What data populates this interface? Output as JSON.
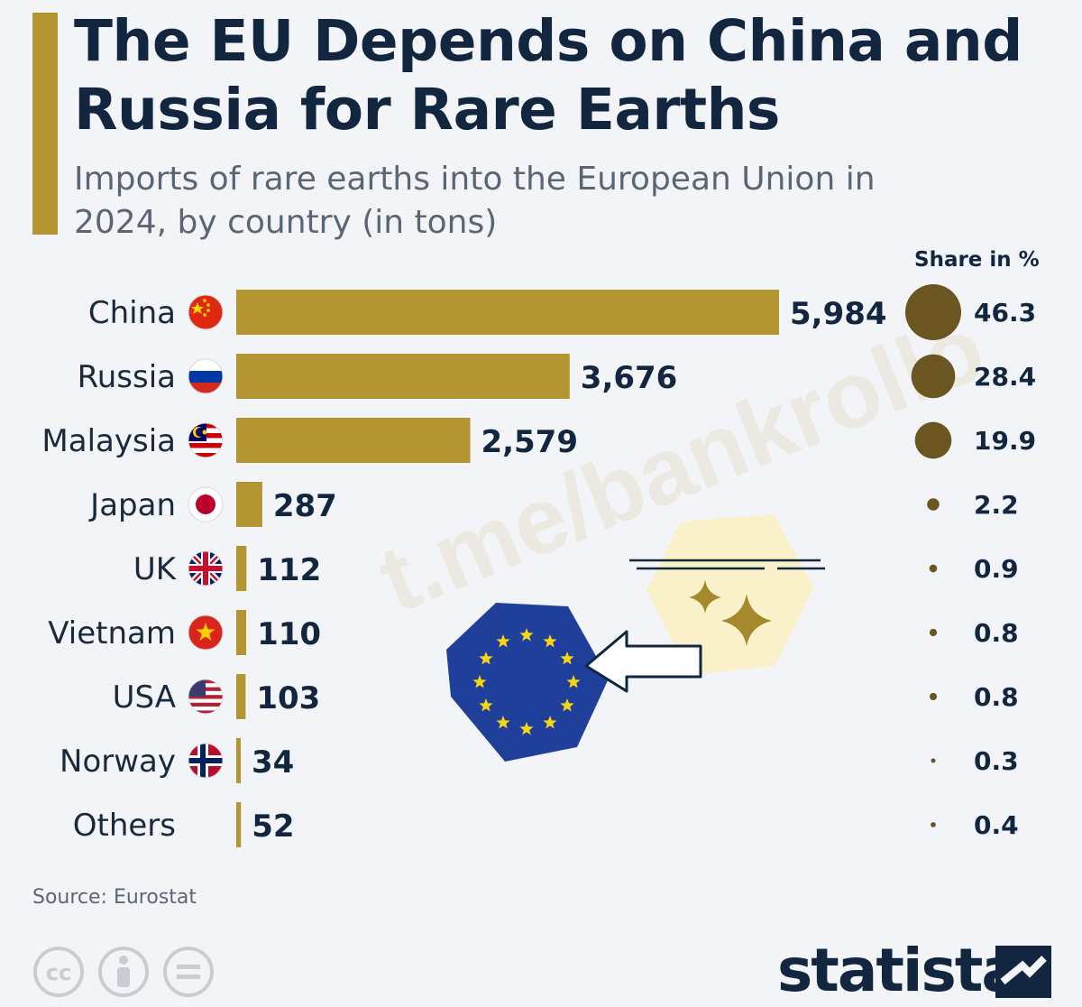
{
  "header": {
    "title": "The EU Depends on China and Russia for Rare Earths",
    "subtitle": "Imports of rare earths into the European Union in 2024, by country (in tons)"
  },
  "share_header": "Share in %",
  "footer": {
    "source": "Source: Eurostat",
    "brand": "statista",
    "watermark": "t.me/bankrollo"
  },
  "colors": {
    "bar": "#b39632",
    "bubble": "#6b5520",
    "text_dark": "#13263f",
    "eu_blue": "#1f3f9a",
    "eu_star": "#f6d516"
  },
  "icons": [
    "flag-china-icon",
    "flag-russia-icon",
    "flag-malaysia-icon",
    "flag-japan-icon",
    "flag-uk-icon",
    "flag-vietnam-icon",
    "flag-usa-icon",
    "flag-norway-icon",
    "eu-flag-icon",
    "cc-license-icon",
    "attribution-icon",
    "no-derivatives-icon",
    "statista-logo-icon"
  ],
  "chart_data": {
    "type": "bar",
    "orientation": "horizontal",
    "title": "The EU Depends on China and Russia for Rare Earths",
    "subtitle": "Imports of rare earths into the European Union in 2024, by country (in tons)",
    "categories": [
      "China",
      "Russia",
      "Malaysia",
      "Japan",
      "UK",
      "Vietnam",
      "USA",
      "Norway",
      "Others"
    ],
    "series": [
      {
        "name": "Imports (tons)",
        "values": [
          5984,
          3676,
          2579,
          287,
          112,
          110,
          103,
          34,
          52
        ],
        "labels": [
          "5,984",
          "3,676",
          "2,579",
          "287",
          "112",
          "110",
          "103",
          "34",
          "52"
        ]
      },
      {
        "name": "Share in %",
        "values": [
          46.3,
          28.4,
          19.9,
          2.2,
          0.9,
          0.8,
          0.8,
          0.3,
          0.4
        ],
        "labels": [
          "46.3",
          "28.4",
          "19.9",
          "2.2",
          "0.9",
          "0.8",
          "0.8",
          "0.3",
          "0.4"
        ]
      }
    ],
    "flags": [
      "china",
      "russia",
      "malaysia",
      "japan",
      "uk",
      "vietnam",
      "usa",
      "norway",
      ""
    ],
    "xlim": [
      0,
      6000
    ],
    "grid": false,
    "legend": "none"
  }
}
